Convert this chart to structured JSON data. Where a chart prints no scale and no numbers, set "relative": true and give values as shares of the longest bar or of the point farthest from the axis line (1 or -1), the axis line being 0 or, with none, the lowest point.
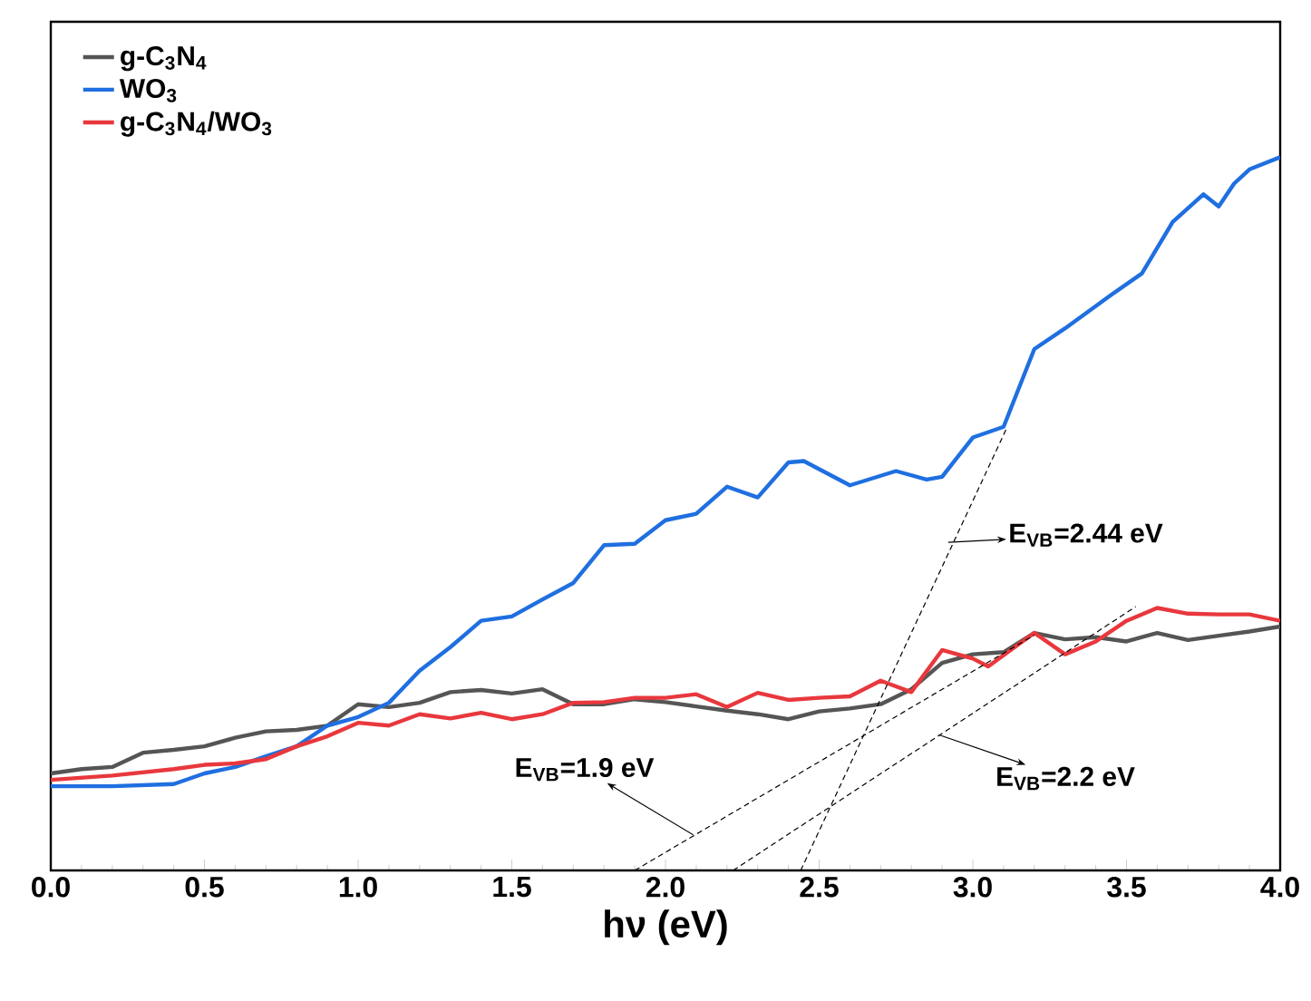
{
  "chart_data": {
    "type": "line",
    "relative": true,
    "xlabel": "hν (eV)",
    "xlim": [
      0,
      4
    ],
    "xticks": [
      {
        "value": 0,
        "label": "0.0"
      },
      {
        "value": 0.5,
        "label": "0.5"
      },
      {
        "value": 1,
        "label": "1.0"
      },
      {
        "value": 1.5,
        "label": "1.5"
      },
      {
        "value": 2,
        "label": "2.0"
      },
      {
        "value": 2.5,
        "label": "2.5"
      },
      {
        "value": 3,
        "label": "3.0"
      },
      {
        "value": 3.5,
        "label": "3.5"
      },
      {
        "value": 4,
        "label": "4.0"
      }
    ],
    "legend": "top left",
    "grid": false,
    "line_style": "solid",
    "marker": "none",
    "series": [
      {
        "name": "g-C$_{3}$N$_{4}$",
        "color": "#555555",
        "x": [
          0,
          0.1,
          0.2,
          0.3,
          0.4,
          0.5,
          0.6,
          0.7,
          0.8,
          0.9,
          1.0,
          1.1,
          1.2,
          1.3,
          1.4,
          1.5,
          1.6,
          1.7,
          1.8,
          1.9,
          2.0,
          2.1,
          2.2,
          2.3,
          2.4,
          2.5,
          2.6,
          2.7,
          2.8,
          2.9,
          3.0,
          3.1,
          3.2,
          3.3,
          3.4,
          3.5,
          3.6,
          3.7,
          3.8,
          3.9,
          4.0
        ],
        "values": [
          0.136,
          0.142,
          0.145,
          0.165,
          0.169,
          0.174,
          0.186,
          0.195,
          0.197,
          0.203,
          0.233,
          0.229,
          0.235,
          0.25,
          0.253,
          0.248,
          0.254,
          0.233,
          0.233,
          0.24,
          0.236,
          0.23,
          0.224,
          0.219,
          0.212,
          0.223,
          0.227,
          0.233,
          0.254,
          0.291,
          0.303,
          0.306,
          0.333,
          0.324,
          0.327,
          0.321,
          0.333,
          0.323,
          0.329,
          0.335,
          0.342
        ]
      },
      {
        "name": "WO$_{3}$",
        "color": "#1f6fe0",
        "x": [
          0,
          0.2,
          0.4,
          0.5,
          0.6,
          0.7,
          0.8,
          0.9,
          1.0,
          1.1,
          1.2,
          1.3,
          1.4,
          1.5,
          1.6,
          1.7,
          1.8,
          1.9,
          2.0,
          2.1,
          2.2,
          2.3,
          2.4,
          2.45,
          2.6,
          2.75,
          2.85,
          2.9,
          3.0,
          3.1,
          3.2,
          3.3,
          3.45,
          3.55,
          3.65,
          3.75,
          3.8,
          3.85,
          3.9,
          4.0
        ],
        "values": [
          0.118,
          0.118,
          0.121,
          0.136,
          0.145,
          0.16,
          0.174,
          0.203,
          0.215,
          0.235,
          0.28,
          0.313,
          0.35,
          0.356,
          0.38,
          0.403,
          0.456,
          0.458,
          0.491,
          0.5,
          0.538,
          0.523,
          0.572,
          0.574,
          0.54,
          0.56,
          0.548,
          0.552,
          0.607,
          0.622,
          0.731,
          0.76,
          0.807,
          0.837,
          0.909,
          0.948,
          0.931,
          0.963,
          0.983,
          1
        ]
      },
      {
        "name": "g-C$_{3}$N$_{4}$/WO$_{3}$",
        "color": "#e8383d",
        "x": [
          0,
          0.2,
          0.4,
          0.5,
          0.6,
          0.7,
          0.8,
          0.9,
          1.0,
          1.1,
          1.2,
          1.3,
          1.4,
          1.5,
          1.6,
          1.7,
          1.8,
          1.9,
          2.0,
          2.1,
          2.2,
          2.3,
          2.4,
          2.5,
          2.6,
          2.7,
          2.8,
          2.9,
          3.0,
          3.05,
          3.2,
          3.3,
          3.4,
          3.5,
          3.6,
          3.7,
          3.8,
          3.9,
          4.0
        ],
        "values": [
          0.127,
          0.133,
          0.142,
          0.148,
          0.15,
          0.156,
          0.174,
          0.188,
          0.207,
          0.203,
          0.219,
          0.213,
          0.221,
          0.212,
          0.219,
          0.235,
          0.236,
          0.242,
          0.242,
          0.247,
          0.229,
          0.249,
          0.239,
          0.242,
          0.244,
          0.266,
          0.25,
          0.309,
          0.297,
          0.286,
          0.333,
          0.303,
          0.321,
          0.35,
          0.368,
          0.36,
          0.359,
          0.359,
          0.35
        ]
      },
      {
        "color": "#000000",
        "line_style": "dashed",
        "x": [
          2.44,
          3.11
        ],
        "values": [
          0,
          0.62
        ]
      },
      {
        "color": "#000000",
        "line_style": "dashed",
        "x": [
          1.9,
          3.2
        ],
        "values": [
          0,
          0.33
        ]
      },
      {
        "color": "#000000",
        "line_style": "dashed",
        "x": [
          2.22,
          3.53
        ],
        "values": [
          0,
          0.37
        ]
      }
    ],
    "annotations": [
      {
        "text": "E$_{VB}$=2.44 eV",
        "x": 2.92,
        "y": 0.46
      },
      {
        "text": "E$_{VB}$=1.9 eV",
        "x": 2.09,
        "y": 0.05
      },
      {
        "text": "E$_{VB}$=2.2 eV",
        "x": 2.89,
        "y": 0.19
      }
    ]
  }
}
